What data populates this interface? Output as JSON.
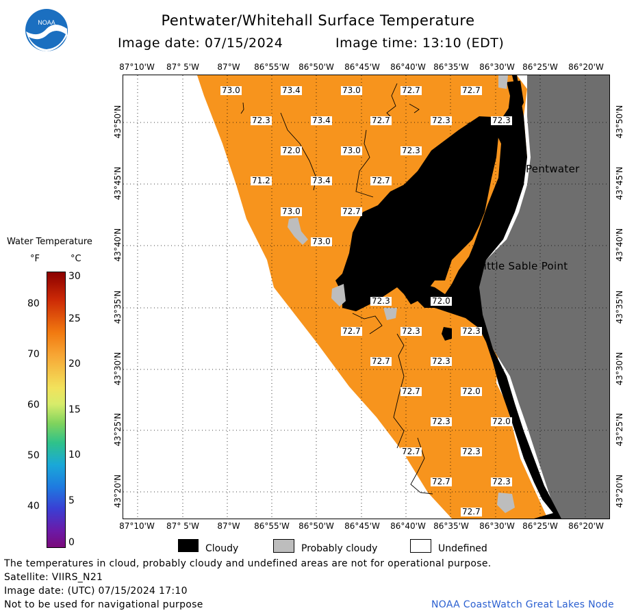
{
  "header": {
    "title": "Pentwater/Whitehall Surface Temperature",
    "image_date": "Image date: 07/15/2024",
    "image_time": "Image time: 13:10 (EDT)"
  },
  "logo": {
    "text": "NOAA"
  },
  "map": {
    "lon_labels": [
      "87°10'W",
      "87° 5'W",
      "87°W",
      "86°55'W",
      "86°50'W",
      "86°45'W",
      "86°40'W",
      "86°35'W",
      "86°30'W",
      "86°25'W",
      "86°20'W"
    ],
    "lat_labels": [
      "43°50'N",
      "43°45'N",
      "43°40'N",
      "43°35'N",
      "43°30'N",
      "43°25'N",
      "43°20'N"
    ],
    "places": {
      "pentwater": "Pentwater",
      "little_sable": "Little Sable Point"
    },
    "temps": [
      "73.0",
      "73.4",
      "73.0",
      "72.7",
      "72.7",
      "72.3",
      "73.4",
      "72.7",
      "72.3",
      "72.3",
      "72.0",
      "73.0",
      "72.3",
      "71.2",
      "73.4",
      "72.7",
      "73.0",
      "72.7",
      "73.0",
      "72.3",
      "72.0",
      "72.7",
      "72.3",
      "72.3",
      "72.7",
      "72.3",
      "72.7",
      "72.0",
      "72.3",
      "72.0",
      "72.7",
      "72.3",
      "72.7",
      "72.3",
      "72.7"
    ],
    "colors": {
      "water": "#f7941d",
      "land": "#6e6e6e",
      "cloud": "#000000",
      "probably_cloudy": "#bdbdbd"
    }
  },
  "colorbar": {
    "title": "Water Temperature",
    "unit_f": "°F",
    "unit_c": "°C",
    "f_ticks": [
      "80",
      "70",
      "60",
      "50",
      "40"
    ],
    "c_ticks": [
      "30",
      "25",
      "20",
      "15",
      "10",
      "5",
      "0"
    ]
  },
  "legend": {
    "cloudy": "Cloudy",
    "probably_cloudy": "Probably cloudy",
    "undefined": "Undefined"
  },
  "footer": {
    "line1": "The temperatures in cloud, probably cloudy and undefined areas are not for operational purpose.",
    "line2": "Satellite: VIIRS_N21",
    "line3": "Image date: (UTC) 07/15/2024  17:10",
    "line4": "Not to be used for navigational purpose",
    "credit": "NOAA CoastWatch Great Lakes Node"
  }
}
